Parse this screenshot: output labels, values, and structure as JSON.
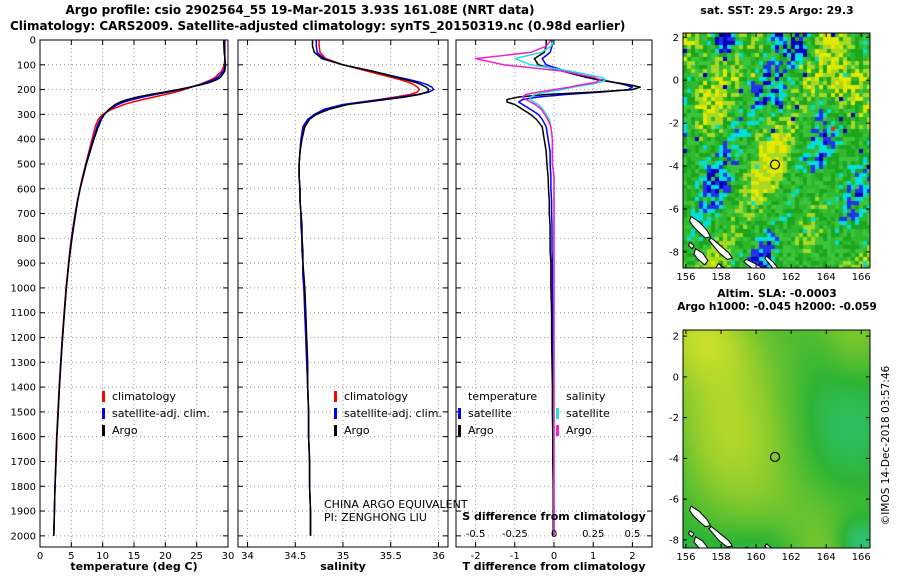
{
  "header": {
    "title_line1": "Argo profile: csio 2902564_55 19-Mar-2015 3.93S 161.08E (NRT data)",
    "title_line2": "Climatology: CARS2009. Satellite-adjusted climatology: synTS_20150319.nc (0.98d earlier)"
  },
  "annotations": {
    "line1": "CHINA ARGO EQUIVALENT",
    "line2": "PI: ZENGHONG LIU"
  },
  "watermark": "©IMOS 14-Dec-2018 03:57:46",
  "colors": {
    "climatology": "#ff0000",
    "satellite_adjusted": "#0000ff",
    "argo": "#000000",
    "salinity_satellite": "#22dde8",
    "salinity_argo": "#ee22cc",
    "grid": "#999999",
    "axis": "#000000",
    "background": "#ffffff"
  },
  "chart_data": [
    {
      "id": "temperature_profile",
      "type": "line",
      "xlabel": "temperature (deg C)",
      "xlim": [
        0,
        30
      ],
      "xticks": [
        0,
        5,
        10,
        15,
        20,
        25,
        30
      ],
      "ylim": [
        0,
        2045
      ],
      "yticks": [
        0,
        100,
        200,
        300,
        400,
        500,
        600,
        700,
        800,
        900,
        1000,
        1100,
        1200,
        1300,
        1400,
        1500,
        1600,
        1700,
        1800,
        1900,
        2000
      ],
      "grid": true,
      "legend": [
        {
          "label": "climatology",
          "color": "#ff0000"
        },
        {
          "label": "satellite-adj. clim.",
          "color": "#0000ff"
        },
        {
          "label": "Argo",
          "color": "#000000"
        }
      ],
      "depths": [
        0,
        25,
        50,
        75,
        100,
        125,
        150,
        160,
        170,
        180,
        190,
        200,
        210,
        220,
        230,
        240,
        250,
        260,
        280,
        300,
        320,
        350,
        400,
        450,
        500,
        550,
        600,
        650,
        700,
        750,
        800,
        850,
        900,
        950,
        1000,
        1100,
        1200,
        1300,
        1400,
        1500,
        1600,
        1700,
        1800,
        1900,
        2000
      ],
      "series": [
        {
          "name": "climatology",
          "color": "#ff0000",
          "values": [
            29.5,
            29.5,
            29.5,
            29.5,
            29.4,
            29.0,
            28.0,
            27.3,
            26.4,
            25.4,
            24.2,
            23.0,
            21.6,
            20.0,
            18.2,
            16.4,
            14.8,
            13.4,
            11.4,
            10.0,
            9.3,
            8.8,
            8.3,
            7.8,
            7.3,
            6.8,
            6.35,
            5.95,
            5.6,
            5.3,
            5.0,
            4.75,
            4.55,
            4.35,
            4.15,
            3.85,
            3.55,
            3.3,
            3.05,
            2.85,
            2.65,
            2.5,
            2.4,
            2.3,
            2.2
          ]
        },
        {
          "name": "satellite-adj. clim.",
          "color": "#0000ff",
          "values": [
            29.4,
            29.45,
            29.45,
            29.5,
            29.55,
            29.3,
            28.4,
            27.7,
            26.7,
            25.5,
            24.0,
            22.4,
            20.4,
            18.4,
            16.4,
            14.8,
            13.4,
            12.4,
            11.1,
            10.2,
            9.6,
            9.1,
            8.5,
            7.9,
            7.35,
            6.85,
            6.4,
            6.0,
            5.65,
            5.35,
            5.05,
            4.8,
            4.6,
            4.4,
            4.2,
            3.9,
            3.6,
            3.3,
            3.1,
            2.9,
            2.7,
            2.55,
            2.4,
            2.3,
            2.2
          ]
        },
        {
          "name": "Argo",
          "color": "#000000",
          "values": [
            29.3,
            29.35,
            29.4,
            29.5,
            29.6,
            29.5,
            28.8,
            28.2,
            27.2,
            25.8,
            24.0,
            22.0,
            19.8,
            17.6,
            15.6,
            14.0,
            12.8,
            12.0,
            11.0,
            10.3,
            9.8,
            9.3,
            8.6,
            8.0,
            7.4,
            6.9,
            6.4,
            6.0,
            5.7,
            5.4,
            5.1,
            4.85,
            4.6,
            4.4,
            4.2,
            3.9,
            3.6,
            3.35,
            3.1,
            2.9,
            2.7,
            2.55,
            2.4,
            2.3,
            2.2
          ]
        }
      ]
    },
    {
      "id": "salinity_profile",
      "type": "line",
      "xlabel": "salinity",
      "xlim": [
        33.9,
        36.1
      ],
      "xticks": [
        34,
        34.5,
        35,
        35.5,
        36
      ],
      "ylim": [
        0,
        2045
      ],
      "yticks": [
        0,
        100,
        200,
        300,
        400,
        500,
        600,
        700,
        800,
        900,
        1000,
        1100,
        1200,
        1300,
        1400,
        1500,
        1600,
        1700,
        1800,
        1900,
        2000
      ],
      "grid": true,
      "legend": [
        {
          "label": "climatology",
          "color": "#ff0000"
        },
        {
          "label": "satellite-adj. clim.",
          "color": "#0000ff"
        },
        {
          "label": "Argo",
          "color": "#000000"
        }
      ],
      "depths": [
        0,
        25,
        50,
        75,
        100,
        125,
        150,
        160,
        170,
        180,
        190,
        200,
        210,
        220,
        230,
        240,
        250,
        260,
        280,
        300,
        320,
        350,
        400,
        450,
        500,
        550,
        600,
        650,
        700,
        750,
        800,
        850,
        900,
        950,
        1000,
        1100,
        1200,
        1300,
        1400,
        1500,
        1600,
        1700,
        1800,
        1900,
        2000
      ],
      "series": [
        {
          "name": "climatology",
          "color": "#ff0000",
          "values": [
            34.75,
            34.75,
            34.76,
            34.82,
            35.0,
            35.25,
            35.5,
            35.6,
            35.68,
            35.74,
            35.78,
            35.8,
            35.78,
            35.7,
            35.55,
            35.38,
            35.2,
            35.02,
            34.82,
            34.7,
            34.64,
            34.59,
            34.56,
            34.55,
            34.54,
            34.54,
            34.55,
            34.55,
            34.56,
            34.56,
            34.57,
            34.57,
            34.58,
            34.58,
            34.59,
            34.6,
            34.61,
            34.62,
            34.63,
            34.64,
            34.64,
            34.65,
            34.65,
            34.66,
            34.66
          ]
        },
        {
          "name": "satellite-adj. clim.",
          "color": "#0000ff",
          "values": [
            34.72,
            34.72,
            34.73,
            34.8,
            35.0,
            35.3,
            35.58,
            35.7,
            35.8,
            35.88,
            35.93,
            35.95,
            35.9,
            35.78,
            35.6,
            35.4,
            35.2,
            35.0,
            34.8,
            34.7,
            34.63,
            34.58,
            34.56,
            34.55,
            34.54,
            34.54,
            34.55,
            34.55,
            34.56,
            34.56,
            34.57,
            34.57,
            34.58,
            34.58,
            34.59,
            34.6,
            34.61,
            34.62,
            34.63,
            34.64,
            34.64,
            34.65,
            34.65,
            34.66,
            34.66
          ]
        },
        {
          "name": "Argo",
          "color": "#000000",
          "values": [
            34.68,
            34.68,
            34.7,
            34.78,
            35.0,
            35.3,
            35.55,
            35.65,
            35.75,
            35.82,
            35.87,
            35.9,
            35.88,
            35.8,
            35.65,
            35.45,
            35.25,
            35.05,
            34.85,
            34.72,
            34.65,
            34.6,
            34.57,
            34.55,
            34.54,
            34.54,
            34.55,
            34.55,
            34.56,
            34.57,
            34.57,
            34.58,
            34.58,
            34.59,
            34.6,
            34.61,
            34.62,
            34.63,
            34.63,
            34.64,
            34.64,
            34.65,
            34.65,
            34.66,
            34.66
          ]
        }
      ]
    },
    {
      "id": "difference_profile",
      "type": "line",
      "xlabel": "T difference from climatology",
      "s_label": "S difference from climatology",
      "xlim": [
        -2.5,
        2.5
      ],
      "xticks": [
        -2,
        -1,
        0,
        1,
        2
      ],
      "s_ticks": [
        -0.5,
        -0.25,
        0,
        0.25,
        0.5
      ],
      "s_axis_scale": 4,
      "ylim": [
        0,
        2045
      ],
      "yticks": [
        0,
        100,
        200,
        300,
        400,
        500,
        600,
        700,
        800,
        900,
        1000,
        1100,
        1200,
        1300,
        1400,
        1500,
        1600,
        1700,
        1800,
        1900,
        2000
      ],
      "grid": true,
      "legend_columns": [
        {
          "header": "temperature",
          "items": [
            {
              "label": "satellite",
              "color": "#0000ff"
            },
            {
              "label": "Argo",
              "color": "#000000"
            }
          ]
        },
        {
          "header": "salinity",
          "items": [
            {
              "label": "satellite",
              "color": "#22dde8"
            },
            {
              "label": "Argo",
              "color": "#ee22cc"
            }
          ]
        }
      ],
      "depths": [
        0,
        25,
        50,
        75,
        100,
        125,
        150,
        160,
        170,
        180,
        190,
        200,
        210,
        220,
        230,
        240,
        250,
        260,
        280,
        300,
        320,
        350,
        400,
        450,
        500,
        550,
        600,
        650,
        700,
        750,
        800,
        850,
        900,
        950,
        1000,
        1100,
        1200,
        1300,
        1400,
        1500,
        1600,
        1700,
        1800,
        1900,
        2000
      ],
      "series": [
        {
          "name": "T satellite",
          "axis": "T",
          "color": "#0000ff",
          "values": [
            -0.05,
            -0.05,
            -0.1,
            -0.3,
            -0.2,
            0.3,
            0.9,
            1.2,
            1.5,
            1.8,
            2.0,
            1.9,
            1.2,
            0.3,
            -0.4,
            -0.8,
            -0.9,
            -0.8,
            -0.6,
            -0.4,
            -0.3,
            -0.2,
            -0.15,
            -0.1,
            -0.1,
            -0.08,
            -0.08,
            -0.06,
            -0.06,
            -0.05,
            -0.05,
            -0.05,
            -0.04,
            -0.04,
            -0.04,
            -0.03,
            -0.03,
            -0.02,
            -0.02,
            -0.02,
            -0.01,
            -0.01,
            -0.01,
            0,
            0
          ]
        },
        {
          "name": "T Argo",
          "axis": "T",
          "color": "#000000",
          "values": [
            -0.2,
            -0.2,
            -0.25,
            -0.5,
            -0.4,
            0.2,
            0.8,
            1.1,
            1.5,
            1.9,
            2.2,
            2.0,
            1.0,
            -0.2,
            -0.9,
            -1.2,
            -1.2,
            -1.0,
            -0.8,
            -0.6,
            -0.45,
            -0.3,
            -0.25,
            -0.2,
            -0.18,
            -0.15,
            -0.14,
            -0.12,
            -0.12,
            -0.1,
            -0.1,
            -0.1,
            -0.08,
            -0.08,
            -0.08,
            -0.06,
            -0.06,
            -0.05,
            -0.04,
            -0.04,
            -0.03,
            -0.03,
            -0.02,
            -0.02,
            -0.02
          ]
        },
        {
          "name": "S satellite",
          "axis": "S",
          "color": "#22dde8",
          "values": [
            0,
            -0.02,
            -0.08,
            -0.25,
            -0.15,
            0.1,
            0.3,
            0.33,
            0.3,
            0.22,
            0.12,
            0.05,
            -0.05,
            -0.12,
            -0.15,
            -0.15,
            -0.13,
            -0.1,
            -0.07,
            -0.05,
            -0.03,
            -0.02,
            -0.01,
            -0.01,
            -0.01,
            0,
            0,
            0,
            0,
            0,
            0,
            0,
            0,
            0,
            0,
            0,
            0,
            0,
            0,
            0,
            0,
            0,
            0,
            0,
            0
          ]
        },
        {
          "name": "S Argo",
          "axis": "S",
          "color": "#ee22cc",
          "values": [
            -0.02,
            -0.05,
            -0.15,
            -0.5,
            -0.32,
            0.05,
            0.25,
            0.3,
            0.27,
            0.18,
            0.1,
            0.0,
            -0.1,
            -0.18,
            -0.2,
            -0.18,
            -0.15,
            -0.12,
            -0.08,
            -0.06,
            -0.04,
            -0.02,
            -0.01,
            -0.01,
            -0.01,
            0,
            0,
            0,
            0,
            0,
            0,
            0,
            0,
            0,
            0,
            0,
            0,
            0,
            0,
            0,
            0,
            0,
            0,
            0,
            0
          ]
        }
      ]
    },
    {
      "id": "sst_map",
      "type": "heatmap",
      "title": "sat. SST: 29.5 Argo: 29.3",
      "xlim": [
        155.83,
        166.5
      ],
      "ylim": [
        2.2,
        -8.75
      ],
      "xticks": [
        156,
        158,
        160,
        162,
        164,
        166
      ],
      "yticks": [
        2,
        0,
        -2,
        -4,
        -6,
        -8
      ],
      "argo_position": {
        "lon": 161.08,
        "lat": -3.93
      },
      "palette": {
        "deep_blue": "#0000bb",
        "blue": "#2233ee",
        "cyan": "#00dede",
        "green_dark": "#1ea51e",
        "green": "#2db82d",
        "green_light": "#3cc43c",
        "yellow_green": "#a8d820",
        "yellow": "#e3e800",
        "red": "#e83000",
        "land": "#ffffff",
        "coast": "#000000"
      },
      "islands": [
        [
          [
            156.3,
            -6.35
          ],
          [
            156.75,
            -6.6
          ],
          [
            157.2,
            -7.0
          ],
          [
            157.4,
            -7.3
          ],
          [
            157.1,
            -7.35
          ],
          [
            156.7,
            -7.05
          ],
          [
            156.4,
            -6.8
          ],
          [
            156.2,
            -6.55
          ]
        ],
        [
          [
            157.45,
            -7.35
          ],
          [
            157.95,
            -7.7
          ],
          [
            158.45,
            -8.05
          ],
          [
            158.65,
            -8.3
          ],
          [
            158.35,
            -8.35
          ],
          [
            157.9,
            -8.05
          ],
          [
            157.5,
            -7.65
          ],
          [
            157.3,
            -7.45
          ]
        ],
        [
          [
            156.55,
            -7.85
          ],
          [
            156.95,
            -8.05
          ],
          [
            157.25,
            -8.4
          ],
          [
            157.05,
            -8.6
          ],
          [
            156.7,
            -8.35
          ],
          [
            156.45,
            -8.1
          ]
        ],
        [
          [
            157.85,
            -8.55
          ],
          [
            158.2,
            -8.75
          ],
          [
            158.05,
            -8.95
          ],
          [
            157.7,
            -8.75
          ]
        ],
        [
          [
            159.45,
            -8.35
          ],
          [
            159.95,
            -8.55
          ],
          [
            160.5,
            -8.8
          ],
          [
            160.9,
            -9.1
          ],
          [
            160.4,
            -9.1
          ],
          [
            159.85,
            -8.8
          ],
          [
            159.5,
            -8.6
          ],
          [
            159.3,
            -8.45
          ]
        ],
        [
          [
            160.6,
            -8.2
          ],
          [
            160.95,
            -8.45
          ],
          [
            161.25,
            -8.75
          ],
          [
            161.0,
            -8.8
          ],
          [
            160.7,
            -8.5
          ],
          [
            160.5,
            -8.3
          ]
        ],
        [
          [
            156.2,
            -7.55
          ],
          [
            156.45,
            -7.7
          ],
          [
            156.35,
            -7.85
          ],
          [
            156.15,
            -7.7
          ]
        ]
      ]
    },
    {
      "id": "sla_map",
      "type": "heatmap",
      "title_line1": "Altim. SLA: -0.0003",
      "title_line2": "Argo h1000: -0.045 h2000: -0.059",
      "xlim": [
        155.83,
        166.5
      ],
      "ylim": [
        2.3,
        -8.4
      ],
      "xticks": [
        156,
        158,
        160,
        162,
        164,
        166
      ],
      "yticks": [
        2,
        0,
        -2,
        -4,
        -6,
        -8
      ],
      "argo_position": {
        "lon": 161.08,
        "lat": -3.93
      },
      "palette_stops": [
        {
          "t": 0,
          "color": "#2ed1c4"
        },
        {
          "t": 0.4,
          "color": "#2eb434"
        },
        {
          "t": 0.7,
          "color": "#8ecc2c"
        },
        {
          "t": 1,
          "color": "#e0e62a"
        }
      ]
    }
  ]
}
